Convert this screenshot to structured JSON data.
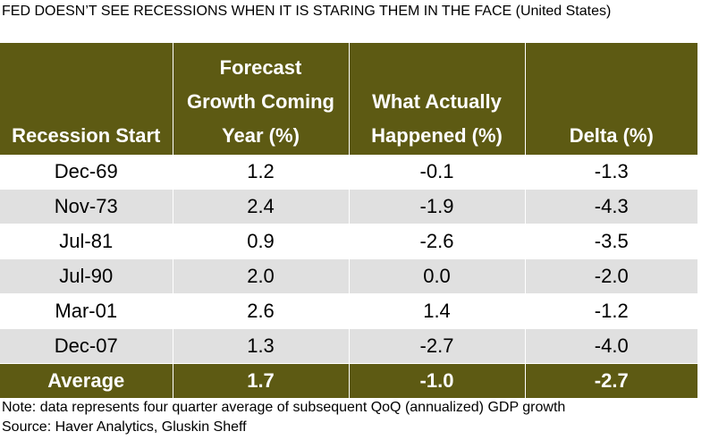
{
  "title": "FED DOESN’T SEE RECESSIONS WHEN IT IS STARING THEM IN THE FACE (United States)",
  "chart_data": {
    "type": "table",
    "columns": [
      "Recession Start",
      "Forecast Growth Coming Year (%)",
      "What Actually Happened (%)",
      "Delta (%)"
    ],
    "header_lines": [
      [
        "Recession Start"
      ],
      [
        "Forecast",
        "Growth Coming",
        "Year (%)"
      ],
      [
        "What Actually",
        "Happened (%)"
      ],
      [
        "Delta (%)"
      ]
    ],
    "rows": [
      [
        "Dec-69",
        "1.2",
        "-0.1",
        "-1.3"
      ],
      [
        "Nov-73",
        "2.4",
        "-1.9",
        "-4.3"
      ],
      [
        "Jul-81",
        "0.9",
        "-2.6",
        "-3.5"
      ],
      [
        "Jul-90",
        "2.0",
        "0.0",
        "-2.0"
      ],
      [
        "Mar-01",
        "2.6",
        "1.4",
        "-1.2"
      ],
      [
        "Dec-07",
        "1.3",
        "-2.7",
        "-4.0"
      ]
    ],
    "average": [
      "Average",
      "1.7",
      "-1.0",
      "-2.7"
    ]
  },
  "notes": {
    "note": "Note: data represents four quarter average of subsequent QoQ (annualized) GDP growth",
    "source": "Source: Haver Analytics, Gluskin Sheff"
  },
  "colors": {
    "header_bg": "#5d5a13",
    "header_text": "#ffffff",
    "stripe": "#e0e0e0"
  }
}
